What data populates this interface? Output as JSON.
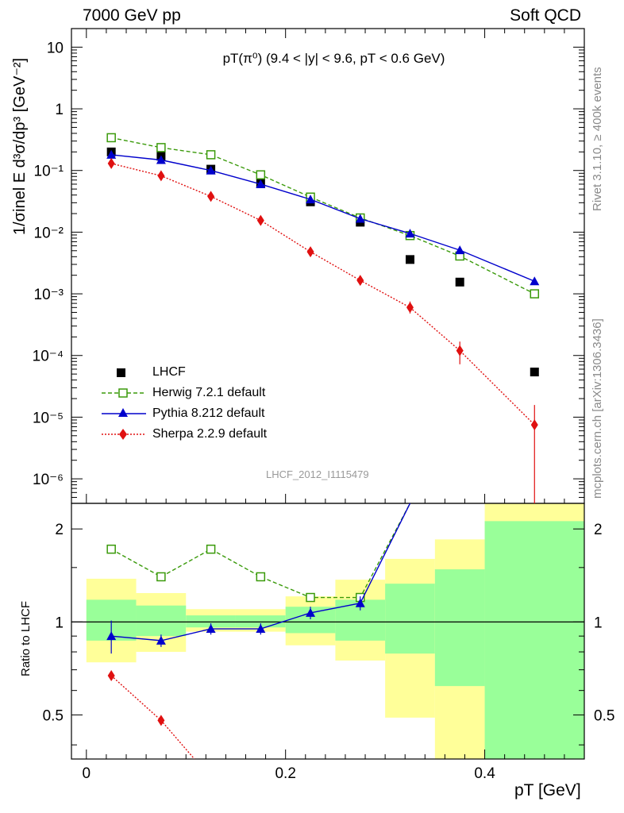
{
  "header": {
    "left": "7000 GeV pp",
    "right": "Soft QCD"
  },
  "side_labels": {
    "top": "Rivet 3.1.10, ≥ 400k events",
    "bottom": "mcplots.cern.ch [arXiv:1306.3436]"
  },
  "watermark": "LHCF_2012_I1115479",
  "main_ylabel": "1/σinel E d³σ/dp³ [GeV⁻²]",
  "ratio_ylabel": "Ratio to LHCF",
  "xlabel": "pT [GeV]",
  "plot_title": "pT(π⁰) (9.4 < |y| < 9.6, pT < 0.6 GeV)",
  "colors": {
    "lhcf": "#000000",
    "herwig": "#3a9a0a",
    "pythia": "#0000cc",
    "sherpa": "#e01010",
    "band_yellow": "#ffff99",
    "band_green": "#99ff99"
  },
  "chart_data": [
    {
      "type": "scatter",
      "title": "pT(π⁰) (9.4 < |y| < 9.6, pT < 0.6 GeV)",
      "xlabel": "pT [GeV]",
      "ylabel": "1/σinel E d³σ/dp³ [GeV⁻²]",
      "xlim": [
        -0.015,
        0.5
      ],
      "ylim": [
        4e-07,
        20
      ],
      "yscale": "log",
      "x_ticks": [
        "0",
        "0.2",
        "0.4"
      ],
      "y_ticks": [
        "10",
        "1",
        "10⁻¹",
        "10⁻²",
        "10⁻³",
        "10⁻⁴",
        "10⁻⁵",
        "10⁻⁶"
      ],
      "legend_position": "bottom-left",
      "series": [
        {
          "name": "LHCF",
          "style": "square",
          "x": [
            0.025,
            0.075,
            0.125,
            0.175,
            0.225,
            0.275,
            0.325,
            0.375,
            0.45
          ],
          "y": [
            0.2,
            0.17,
            0.105,
            0.062,
            0.031,
            0.0145,
            0.0036,
            0.00155,
            5.4e-05
          ]
        },
        {
          "name": "Herwig 7.2.1 default",
          "style": "open-square-dashed",
          "x": [
            0.025,
            0.075,
            0.125,
            0.175,
            0.225,
            0.275,
            0.325,
            0.375,
            0.45
          ],
          "y": [
            0.34,
            0.235,
            0.18,
            0.085,
            0.037,
            0.017,
            0.0088,
            0.0041,
            0.001
          ]
        },
        {
          "name": "Pythia 8.212 default",
          "style": "triangle-solid",
          "x": [
            0.025,
            0.075,
            0.125,
            0.175,
            0.225,
            0.275,
            0.325,
            0.375,
            0.45
          ],
          "y": [
            0.18,
            0.148,
            0.1,
            0.06,
            0.034,
            0.0165,
            0.0095,
            0.0051,
            0.0016
          ]
        },
        {
          "name": "Sherpa 2.2.9 default",
          "style": "diamond-dotted",
          "x": [
            0.025,
            0.075,
            0.125,
            0.175,
            0.225,
            0.275,
            0.325,
            0.375,
            0.45
          ],
          "y": [
            0.13,
            0.082,
            0.038,
            0.0155,
            0.0048,
            0.00165,
            0.0006,
            0.00012,
            7.5e-06
          ]
        }
      ]
    },
    {
      "type": "line",
      "ylabel": "Ratio to LHCF",
      "xlabel": "pT [GeV]",
      "xlim": [
        -0.015,
        0.5
      ],
      "ylim": [
        0.36,
        2.42
      ],
      "yscale": "log",
      "y_ticks": [
        "0.5",
        "1",
        "2"
      ],
      "bands": {
        "x_edges": [
          0.0,
          0.05,
          0.1,
          0.15,
          0.2,
          0.25,
          0.3,
          0.35,
          0.4,
          0.5
        ],
        "yellow_low": [
          0.74,
          0.8,
          0.93,
          0.93,
          0.84,
          0.75,
          0.49,
          0.36,
          0.36
        ],
        "yellow_high": [
          1.38,
          1.24,
          1.1,
          1.1,
          1.21,
          1.37,
          1.6,
          1.85,
          2.42
        ],
        "green_low": [
          0.87,
          0.9,
          0.96,
          0.96,
          0.92,
          0.87,
          0.79,
          0.62,
          0.36
        ],
        "green_high": [
          1.18,
          1.13,
          1.05,
          1.05,
          1.12,
          1.18,
          1.33,
          1.48,
          2.12
        ]
      },
      "series": [
        {
          "name": "Herwig 7.2.1 default",
          "x": [
            0.025,
            0.075,
            0.125,
            0.175,
            0.225,
            0.275,
            0.325
          ],
          "y": [
            1.72,
            1.4,
            1.72,
            1.4,
            1.2,
            1.2,
            2.42
          ]
        },
        {
          "name": "Pythia 8.212 default",
          "x": [
            0.025,
            0.075,
            0.125,
            0.175,
            0.225,
            0.275,
            0.325
          ],
          "y": [
            0.9,
            0.87,
            0.95,
            0.95,
            1.07,
            1.15,
            2.42
          ]
        },
        {
          "name": "Sherpa 2.2.9 default",
          "x": [
            0.025,
            0.075,
            0.1085
          ],
          "y": [
            0.67,
            0.48,
            0.36
          ]
        }
      ]
    }
  ]
}
